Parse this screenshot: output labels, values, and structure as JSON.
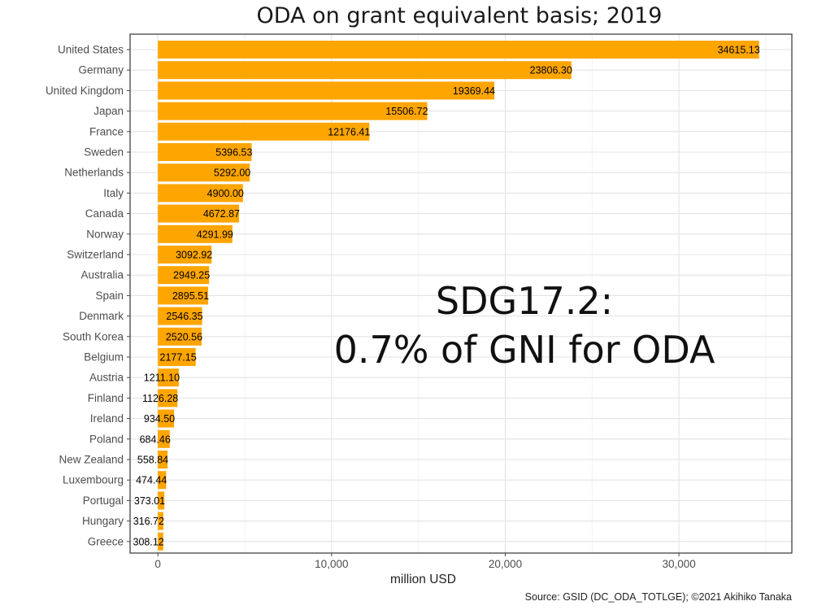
{
  "chart_data": {
    "type": "bar",
    "orientation": "horizontal",
    "title": "ODA on grant equivalent basis; 2019",
    "xlabel": "million USD",
    "ylabel": "",
    "xlim": [
      -1600,
      36500
    ],
    "x_ticks": [
      0,
      10000,
      20000,
      30000
    ],
    "x_tick_labels": [
      "0",
      "10,000",
      "20,000",
      "30,000"
    ],
    "grid": true,
    "bar_color": "#FFA500",
    "categories": [
      "United States",
      "Germany",
      "United Kingdom",
      "Japan",
      "France",
      "Sweden",
      "Netherlands",
      "Italy",
      "Canada",
      "Norway",
      "Switzerland",
      "Australia",
      "Spain",
      "Denmark",
      "South Korea",
      "Belgium",
      "Austria",
      "Finland",
      "Ireland",
      "Poland",
      "New Zealand",
      "Luxembourg",
      "Portugal",
      "Hungary",
      "Greece"
    ],
    "values": [
      34615.13,
      23806.3,
      19369.44,
      15506.72,
      12176.41,
      5396.53,
      5292.0,
      4900.0,
      4672.87,
      4291.99,
      3092.92,
      2949.25,
      2895.51,
      2546.35,
      2520.56,
      2177.15,
      1211.1,
      1126.28,
      934.5,
      684.46,
      558.84,
      474.44,
      373.01,
      316.72,
      308.12
    ],
    "value_labels": [
      "34615.13",
      "23806.30",
      "19369.44",
      "15506.72",
      "12176.41",
      "5396.53",
      "5292.00",
      "4900.00",
      "4672.87",
      "4291.99",
      "3092.92",
      "2949.25",
      "2895.51",
      "2546.35",
      "2520.56",
      "2177.15",
      "1211.10",
      "1126.28",
      "934.50",
      "684.46",
      "558.84",
      "474.44",
      "373.01",
      "316.72",
      "308.12"
    ]
  },
  "annotation": {
    "line1": "SDG17.2:",
    "line2": "0.7% of GNI for ODA"
  },
  "source": "Source: GSID (DC_ODA_TOTLGE); ©2021 Akihiko Tanaka"
}
